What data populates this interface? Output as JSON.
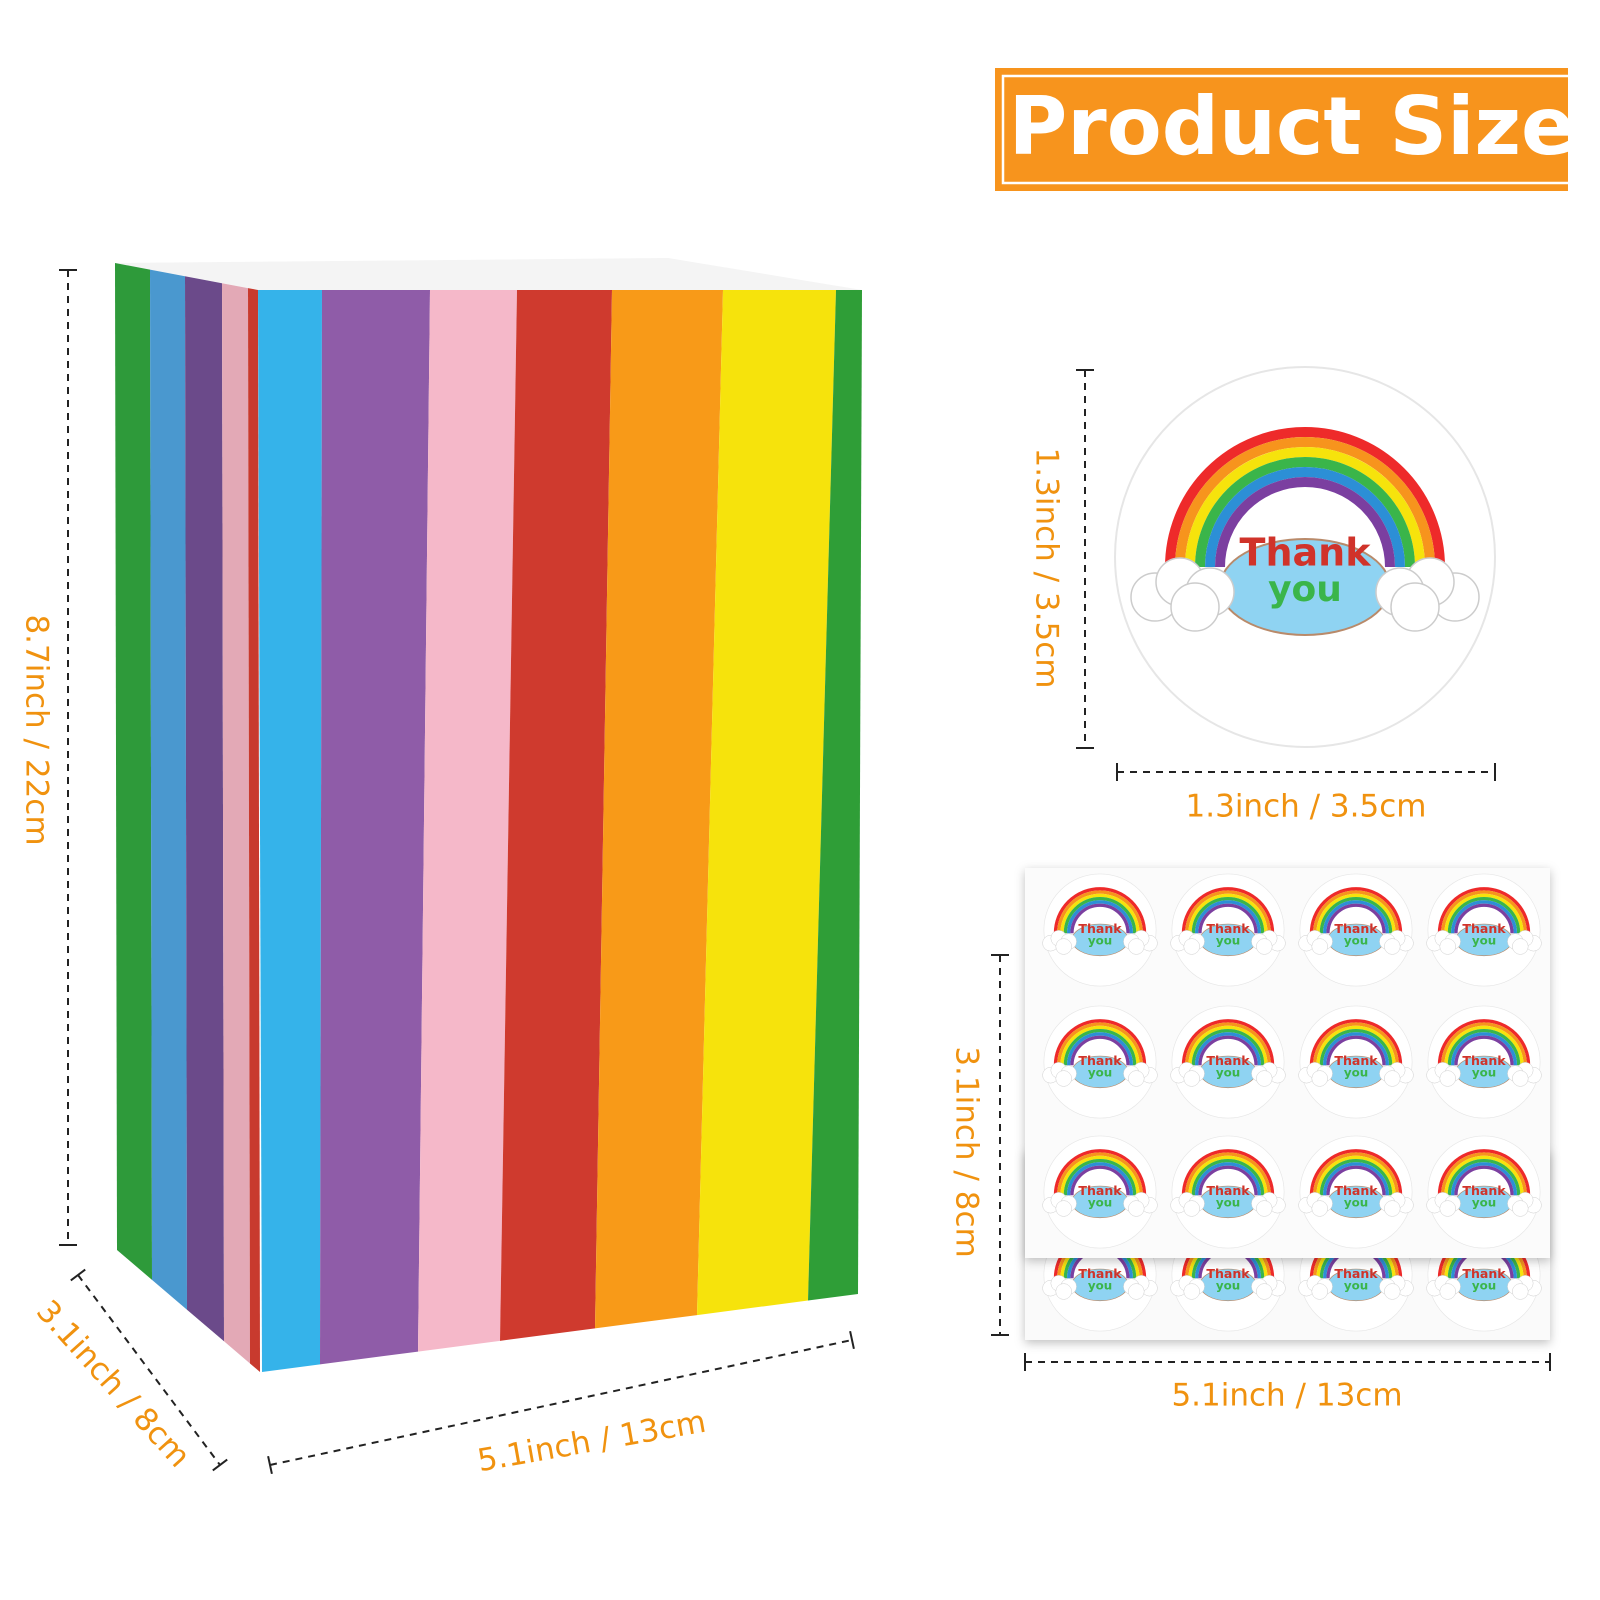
{
  "header": {
    "title": "Product Size"
  },
  "bag": {
    "height_label": "8.7inch / 22cm",
    "depth_label": "3.1inch / 8cm",
    "width_label": "5.1inch / 13cm"
  },
  "sticker": {
    "text_line1": "Thank",
    "text_line2": "you",
    "height_label": "1.3inch / 3.5cm",
    "width_label": "1.3inch / 3.5cm"
  },
  "sticker_sheet": {
    "height_label": "3.1inch / 8cm",
    "width_label": "5.1inch / 13cm"
  }
}
